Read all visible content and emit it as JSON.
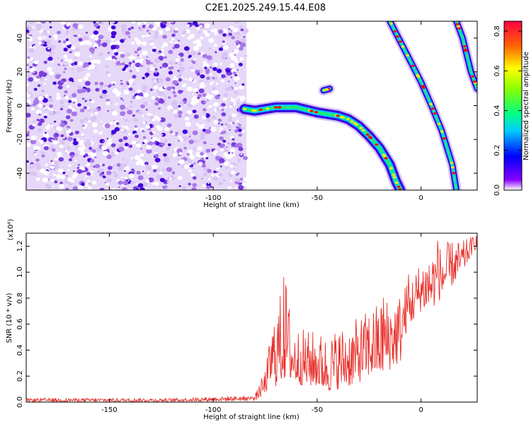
{
  "title": "C2E1.2025.249.15.44.E08",
  "colors": {
    "snr_line": "#e8302a",
    "track_core": "#ff0000",
    "noise_dark": "#4400dd",
    "noise_light": "#c8a8f0"
  },
  "chart_data": [
    {
      "type": "heatmap",
      "name": "spectrogram",
      "xlabel": "Height of straight line (km)",
      "ylabel": "Frequency (Hz)",
      "xlim": [
        -190,
        27
      ],
      "ylim": [
        -50,
        50
      ],
      "xticks": [
        -150,
        -100,
        -50,
        0
      ],
      "yticks": [
        -40,
        -20,
        0,
        20,
        40
      ],
      "colorbar": {
        "label": "Normalized spectral amplitude",
        "range": [
          0.0,
          0.85
        ],
        "ticks": [
          "0.0",
          "0.2",
          "0.4",
          "0.6",
          "0.8"
        ],
        "colormap": "rainbow"
      },
      "noise_region": {
        "x": [
          -190,
          -84
        ],
        "y": [
          -50,
          50
        ]
      },
      "tracks": [
        {
          "label": "main-arc",
          "points": [
            [
              -85,
              -2
            ],
            [
              -80,
              -3
            ],
            [
              -70,
              -1
            ],
            [
              -60,
              -1
            ],
            [
              -50,
              -4
            ],
            [
              -40,
              -6
            ],
            [
              -35,
              -8
            ],
            [
              -30,
              -12
            ],
            [
              -25,
              -18
            ],
            [
              -20,
              -25
            ],
            [
              -15,
              -35
            ],
            [
              -12,
              -45
            ],
            [
              -10,
              -50
            ]
          ]
        },
        {
          "label": "diagonal-1",
          "points": [
            [
              -15,
              50
            ],
            [
              -10,
              38
            ],
            [
              -5,
              26
            ],
            [
              0,
              14
            ],
            [
              5,
              0
            ],
            [
              10,
              -15
            ],
            [
              15,
              -35
            ],
            [
              17,
              -50
            ]
          ]
        },
        {
          "label": "diagonal-2",
          "points": [
            [
              17,
              50
            ],
            [
              20,
              40
            ],
            [
              24,
              20
            ],
            [
              27,
              10
            ]
          ]
        },
        {
          "label": "blob",
          "points": [
            [
              -47,
              9
            ],
            [
              -44,
              10
            ]
          ]
        }
      ]
    },
    {
      "type": "line",
      "name": "snr",
      "xlabel": "Height of straight line (km)",
      "ylabel": "SNR (10 * v/v)",
      "scale_label": "(x10⁴)",
      "xlim": [
        -190,
        27
      ],
      "ylim": [
        0,
        1.3
      ],
      "xticks": [
        -150,
        -100,
        -50,
        0
      ],
      "yticks": [
        0.0,
        0.2,
        0.4,
        0.6,
        0.8,
        1.0,
        1.2
      ],
      "envelope": {
        "x": [
          -190,
          -120,
          -80,
          -75,
          -72,
          -70,
          -65,
          -62,
          -55,
          -50,
          -45,
          -40,
          -35,
          -30,
          -25,
          -20,
          -15,
          -10,
          -8,
          -5,
          0,
          5,
          10,
          15,
          20,
          25,
          27
        ],
        "low": [
          0.0,
          0.0,
          0.01,
          0.06,
          0.15,
          0.12,
          0.18,
          0.15,
          0.12,
          0.12,
          0.08,
          0.1,
          0.12,
          0.15,
          0.2,
          0.2,
          0.25,
          0.3,
          0.5,
          0.6,
          0.7,
          0.72,
          0.8,
          0.9,
          1.0,
          1.15,
          1.2
        ],
        "high": [
          0.03,
          0.03,
          0.05,
          0.25,
          0.55,
          0.75,
          0.95,
          0.6,
          0.55,
          0.55,
          0.5,
          0.58,
          0.6,
          0.65,
          0.72,
          0.78,
          0.82,
          0.85,
          0.9,
          0.95,
          1.1,
          1.18,
          1.22,
          1.24,
          1.24,
          1.28,
          1.3
        ]
      },
      "peaks": [
        [
          -66,
          0.96
        ],
        [
          -73,
          0.43
        ],
        [
          -18,
          0.8
        ],
        [
          -6,
          0.98
        ],
        [
          8,
          1.24
        ]
      ]
    }
  ]
}
